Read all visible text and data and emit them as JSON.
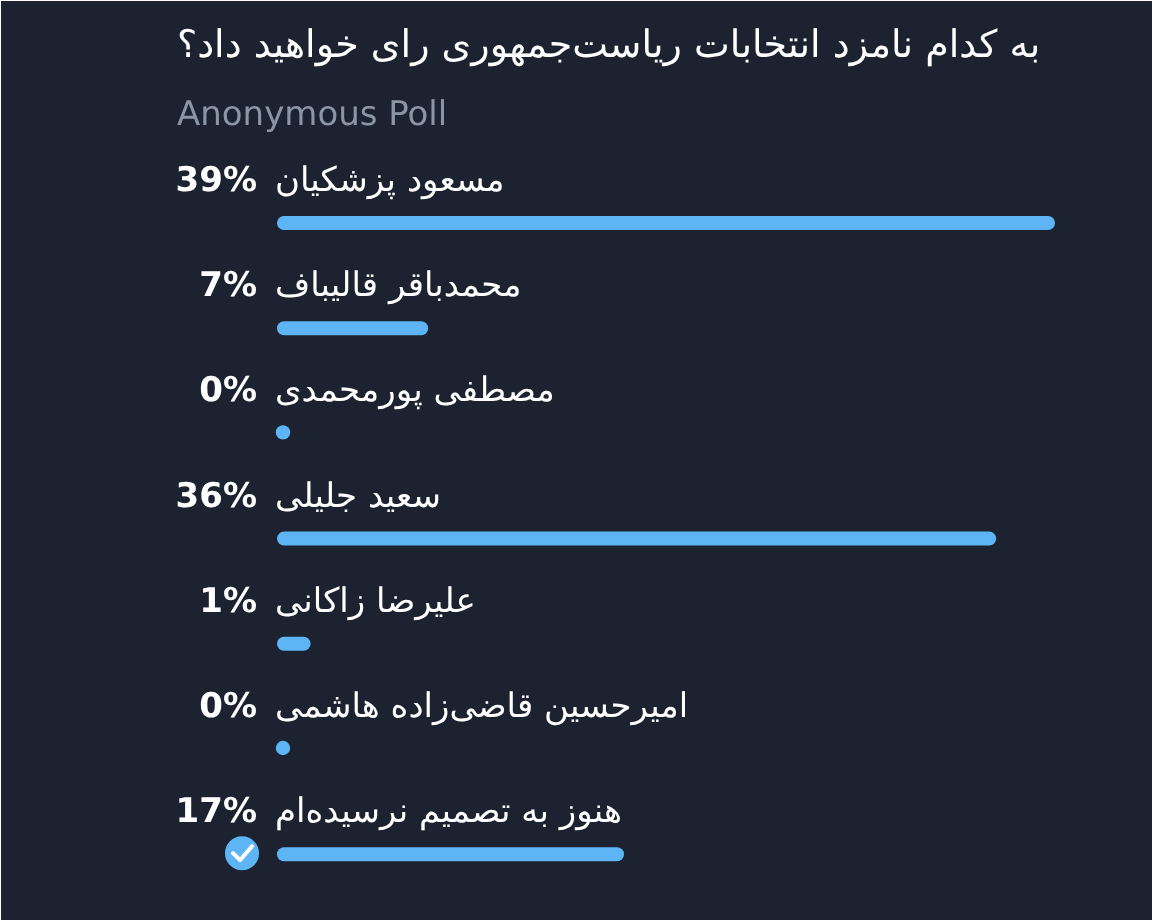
{
  "chart_data": {
    "type": "bar",
    "orientation": "horizontal",
    "title": "به کدام نامزد انتخابات ریاست‌جمهوری رای خواهید داد؟",
    "subtitle": "Anonymous Poll",
    "categories": [
      "مسعود پزشکیان",
      "محمدباقر قالیباف",
      "مصطفی پورمحمدی",
      "سعید جلیلی",
      "علیرضا زاکانی",
      "امیرحسین قاضی‌زاده هاشمی",
      "هنوز به تصمیم نرسیده‌ام"
    ],
    "values": [
      39,
      7,
      0,
      36,
      1,
      0,
      17
    ],
    "value_labels": [
      "39%",
      "7%",
      "0%",
      "36%",
      "1%",
      "0%",
      "17%"
    ],
    "color": "#5eb5f5"
  }
}
